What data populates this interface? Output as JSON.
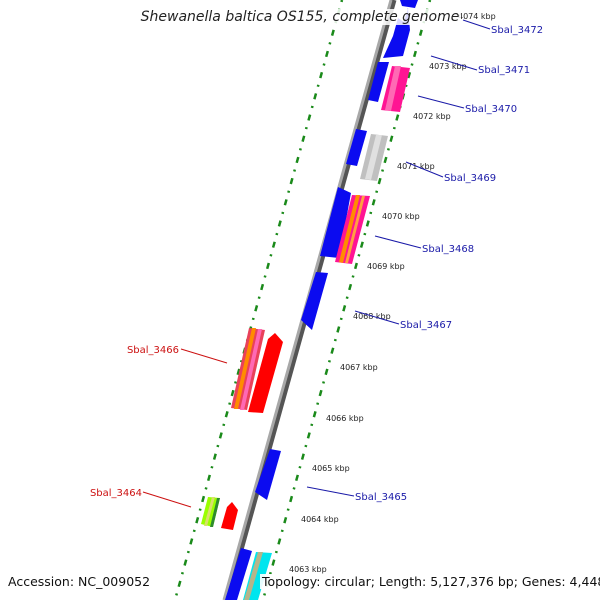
{
  "title": "Shewanella baltica OS155, complete genome",
  "accession": "Accession: NC_009052",
  "summary": "Topology: circular; Length: 5,127,376 bp; Genes: 4,448",
  "colors": {
    "backbone": "#8c8c8c",
    "dotted_track": "#1a8a1a",
    "label_blue": "#1a1aa8",
    "label_red": "#cc1111",
    "gene_blue": "#0b0bf0",
    "gene_red": "#ff0000"
  },
  "ticks": [
    {
      "label": "4074 kbp"
    },
    {
      "label": "4073 kbp"
    },
    {
      "label": "4072 kbp"
    },
    {
      "label": "4071 kbp"
    },
    {
      "label": "4070 kbp"
    },
    {
      "label": "4069 kbp"
    },
    {
      "label": "4068 kbp"
    },
    {
      "label": "4067 kbp"
    },
    {
      "label": "4066 kbp"
    },
    {
      "label": "4065 kbp"
    },
    {
      "label": "4064 kbp"
    },
    {
      "label": "4063 kbp"
    }
  ],
  "genes": [
    {
      "name": "Sbal_3472",
      "strand": "outer"
    },
    {
      "name": "Sbal_3471",
      "strand": "outer"
    },
    {
      "name": "Sbal_3470",
      "strand": "outer"
    },
    {
      "name": "Sbal_3469",
      "strand": "outer"
    },
    {
      "name": "Sbal_3468",
      "strand": "outer"
    },
    {
      "name": "Sbal_3467",
      "strand": "outer"
    },
    {
      "name": "Sbal_3466",
      "strand": "inner"
    },
    {
      "name": "Sbal_3465",
      "strand": "outer"
    },
    {
      "name": "Sbal_3464",
      "strand": "inner"
    }
  ]
}
